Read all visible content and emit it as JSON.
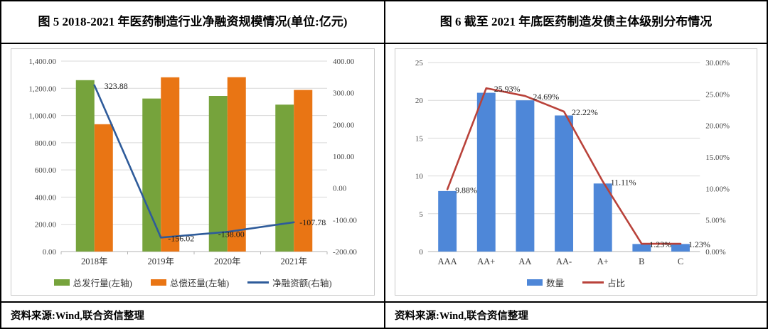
{
  "figures": [
    {
      "title": "图 5  2018-2021 年医药制造行业净融资规模情况(单位:亿元)",
      "source": "资料来源:Wind,联合资信整理"
    },
    {
      "title": "图 6  截至 2021 年底医药制造发债主体级别分布情况",
      "source": "资料来源:Wind,联合资信整理"
    }
  ],
  "chart_data": [
    {
      "type": "bar+line",
      "title": "2018-2021 年医药制造行业净融资规模情况(单位:亿元)",
      "categories": [
        "2018年",
        "2019年",
        "2020年",
        "2021年"
      ],
      "series": [
        {
          "name": "总发行量(左轴)",
          "type": "bar",
          "axis": "left",
          "color": "#76A33C",
          "values": [
            1260,
            1125,
            1144,
            1080
          ]
        },
        {
          "name": "总偿还量(左轴)",
          "type": "bar",
          "axis": "left",
          "color": "#E97514",
          "values": [
            936,
            1281,
            1282,
            1188
          ]
        },
        {
          "name": "净融资额(右轴)",
          "type": "line",
          "axis": "right",
          "color": "#2E5B9A",
          "values": [
            323.88,
            -156.02,
            -138.0,
            -107.78
          ],
          "labels": [
            "323.88",
            "-156.02",
            "-138.00",
            "-107.78"
          ]
        }
      ],
      "left_axis": {
        "min": 0,
        "max": 1400,
        "step": 200,
        "ticks": [
          "1,400.00",
          "1,200.00",
          "1,000.00",
          "800.00",
          "600.00",
          "400.00",
          "200.00",
          "0.00"
        ]
      },
      "right_axis": {
        "min": -200,
        "max": 400,
        "step": 100,
        "ticks": [
          "400.00",
          "300.00",
          "200.00",
          "100.00",
          "0.00",
          "-100.00",
          "-200.00"
        ]
      },
      "grid": "on",
      "legend_position": "bottom"
    },
    {
      "type": "bar+line",
      "title": "截至 2021 年底医药制造发债主体级别分布情况",
      "categories": [
        "AAA",
        "AA+",
        "AA",
        "AA-",
        "A+",
        "B",
        "C"
      ],
      "series": [
        {
          "name": "数量",
          "type": "bar",
          "axis": "left",
          "color": "#4E87D8",
          "values": [
            8,
            21,
            20,
            18,
            9,
            1,
            1
          ]
        },
        {
          "name": "占比",
          "type": "line",
          "axis": "right",
          "color": "#B9423A",
          "values": [
            9.88,
            25.93,
            24.69,
            22.22,
            11.11,
            1.23,
            1.23
          ],
          "labels": [
            "9.88%",
            "25.93%",
            "24.69%",
            "22.22%",
            "11.11%",
            "1.23%",
            "1.23%"
          ]
        }
      ],
      "left_axis": {
        "min": 0,
        "max": 25,
        "step": 5,
        "ticks": [
          "25",
          "20",
          "15",
          "10",
          "5",
          "0"
        ]
      },
      "right_axis": {
        "min": 0,
        "max": 30,
        "step": 5,
        "ticks": [
          "30.00%",
          "25.00%",
          "20.00%",
          "15.00%",
          "10.00%",
          "5.00%",
          "0.00%"
        ]
      },
      "grid": "on",
      "legend_position": "bottom"
    }
  ]
}
